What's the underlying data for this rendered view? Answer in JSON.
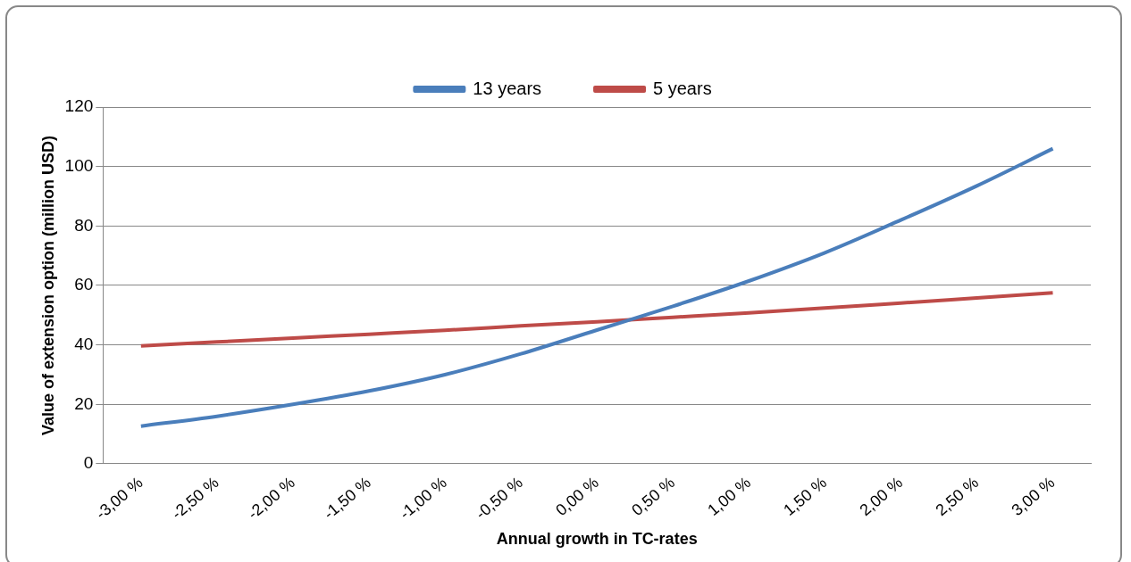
{
  "chart_data": {
    "type": "line",
    "xlabel": "Annual growth in TC-rates",
    "ylabel": "Value of extension option (million USD)",
    "categories": [
      "-3,00 %",
      "-2,50 %",
      "-2,00 %",
      "-1,50 %",
      "-1,00 %",
      "-0,50 %",
      "0,00 %",
      "0,50 %",
      "1,00 %",
      "1,50 %",
      "2,00 %",
      "2,50 %",
      "3,00 %"
    ],
    "series": [
      {
        "name": "13 years",
        "color": "#4a7ebb",
        "values": [
          12.7,
          16,
          20,
          24.5,
          30,
          37,
          45,
          53,
          61.5,
          71,
          82,
          93.5,
          106
        ]
      },
      {
        "name": "5 years",
        "color": "#be4b48",
        "values": [
          39.7,
          41,
          42.3,
          43.6,
          44.9,
          46.4,
          47.8,
          49.3,
          50.8,
          52.4,
          54.1,
          55.8,
          57.5
        ]
      }
    ],
    "ylim": [
      0,
      120
    ],
    "yticks": [
      0,
      20,
      40,
      60,
      80,
      100,
      120
    ],
    "grid": "y",
    "legend": "top",
    "marker": "none",
    "line_style": "solid"
  }
}
